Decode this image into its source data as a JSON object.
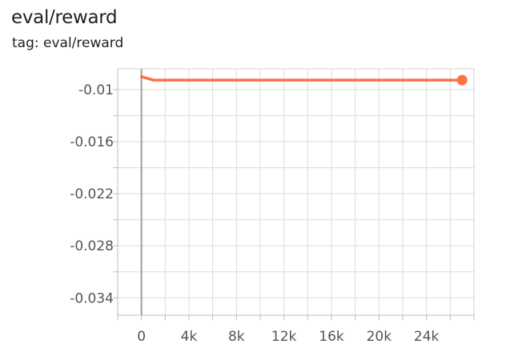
{
  "header": {
    "title": "eval/reward",
    "subtitle": "tag: eval/reward"
  },
  "chart_data": {
    "type": "line",
    "title": "eval/reward",
    "subtitle": "tag: eval/reward",
    "xlabel": "",
    "ylabel": "",
    "x_ticks": [
      0,
      4000,
      8000,
      12000,
      16000,
      20000,
      24000
    ],
    "x_tick_labels": [
      "0",
      "4k",
      "8k",
      "12k",
      "16k",
      "20k",
      "24k"
    ],
    "y_ticks": [
      -0.01,
      -0.016,
      -0.022,
      -0.028,
      -0.034
    ],
    "y_tick_labels": [
      "-0.01",
      "-0.016",
      "-0.022",
      "-0.028",
      "-0.034"
    ],
    "xlim": [
      -2000,
      28000
    ],
    "ylim": [
      -0.036,
      -0.0076
    ],
    "grid": true,
    "series": [
      {
        "color": "#ff7043",
        "x": [
          0,
          1000,
          27000
        ],
        "y": [
          -0.0085,
          -0.0089,
          -0.0089
        ]
      }
    ]
  }
}
